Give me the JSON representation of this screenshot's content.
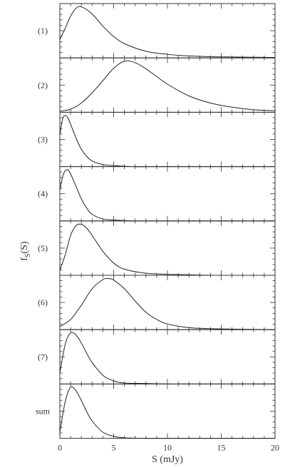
{
  "chart_data": {
    "type": "line",
    "title": "",
    "xlabel": "S (mJy)",
    "ylabel": "f_S(S)",
    "ylabel_main": "f",
    "ylabel_sub": "S",
    "ylabel_arg": "(S)",
    "xlim": [
      0,
      20
    ],
    "x_ticks": [
      0,
      5,
      10,
      15,
      20
    ],
    "x_tick_labels": [
      "0",
      "5",
      "10",
      "15",
      "20"
    ],
    "grid": false,
    "legend": "none",
    "panels": [
      {
        "label": "(1)",
        "x": [
          0,
          0.5,
          1,
          1.5,
          2,
          3,
          4,
          5,
          6,
          8,
          10,
          12,
          15,
          20
        ],
        "y": [
          0.36,
          0.58,
          0.82,
          0.97,
          1.0,
          0.86,
          0.62,
          0.42,
          0.28,
          0.13,
          0.07,
          0.04,
          0.02,
          0.01
        ]
      },
      {
        "label": "(2)",
        "x": [
          0,
          1,
          2,
          3,
          4,
          5,
          6,
          7,
          8,
          9,
          10,
          12,
          14,
          16,
          18,
          20
        ],
        "y": [
          0.02,
          0.06,
          0.18,
          0.38,
          0.62,
          0.86,
          1.0,
          0.97,
          0.85,
          0.7,
          0.55,
          0.32,
          0.18,
          0.1,
          0.05,
          0.03
        ]
      },
      {
        "label": "(3)",
        "x": [
          0,
          0.25,
          0.5,
          0.75,
          1,
          1.5,
          2,
          2.5,
          3,
          4,
          5,
          7,
          10,
          20
        ],
        "y": [
          0.62,
          0.93,
          1.0,
          0.95,
          0.83,
          0.56,
          0.34,
          0.2,
          0.11,
          0.04,
          0.02,
          0.0,
          0.0,
          0.0
        ]
      },
      {
        "label": "(4)",
        "x": [
          0,
          0.25,
          0.5,
          0.75,
          1,
          1.5,
          2,
          2.5,
          3,
          4,
          5,
          7,
          10,
          20
        ],
        "y": [
          0.6,
          0.86,
          0.98,
          1.0,
          0.92,
          0.68,
          0.43,
          0.25,
          0.13,
          0.04,
          0.02,
          0.0,
          0.0,
          0.0
        ]
      },
      {
        "label": "(5)",
        "x": [
          0,
          0.5,
          1,
          1.5,
          2,
          2.5,
          3,
          4,
          5,
          6,
          8,
          10,
          12,
          15,
          20
        ],
        "y": [
          0.1,
          0.4,
          0.78,
          0.97,
          1.0,
          0.92,
          0.78,
          0.47,
          0.24,
          0.12,
          0.04,
          0.02,
          0.01,
          0.0,
          0.0
        ]
      },
      {
        "label": "(6)",
        "x": [
          0,
          1,
          2,
          3,
          4,
          4.5,
          5,
          6,
          7,
          8,
          9,
          10,
          12,
          14,
          16,
          20
        ],
        "y": [
          0.06,
          0.2,
          0.48,
          0.8,
          0.98,
          1.0,
          0.97,
          0.8,
          0.56,
          0.34,
          0.2,
          0.11,
          0.04,
          0.02,
          0.01,
          0.0
        ]
      },
      {
        "label": "(7)",
        "x": [
          0,
          0.5,
          1,
          1.5,
          2,
          2.5,
          3,
          4,
          5,
          6,
          8,
          10,
          12,
          20
        ],
        "y": [
          0.22,
          0.78,
          1.0,
          0.96,
          0.8,
          0.6,
          0.42,
          0.17,
          0.06,
          0.02,
          0.01,
          0.0,
          0.0,
          0.0
        ]
      },
      {
        "label": "sum",
        "x": [
          0,
          0.5,
          1,
          1.5,
          2,
          2.5,
          3,
          4,
          5,
          6,
          8,
          10,
          12,
          20
        ],
        "y": [
          0.12,
          0.72,
          1.0,
          0.93,
          0.74,
          0.52,
          0.34,
          0.12,
          0.04,
          0.01,
          0.0,
          0.0,
          0.0,
          0.0
        ]
      }
    ]
  }
}
